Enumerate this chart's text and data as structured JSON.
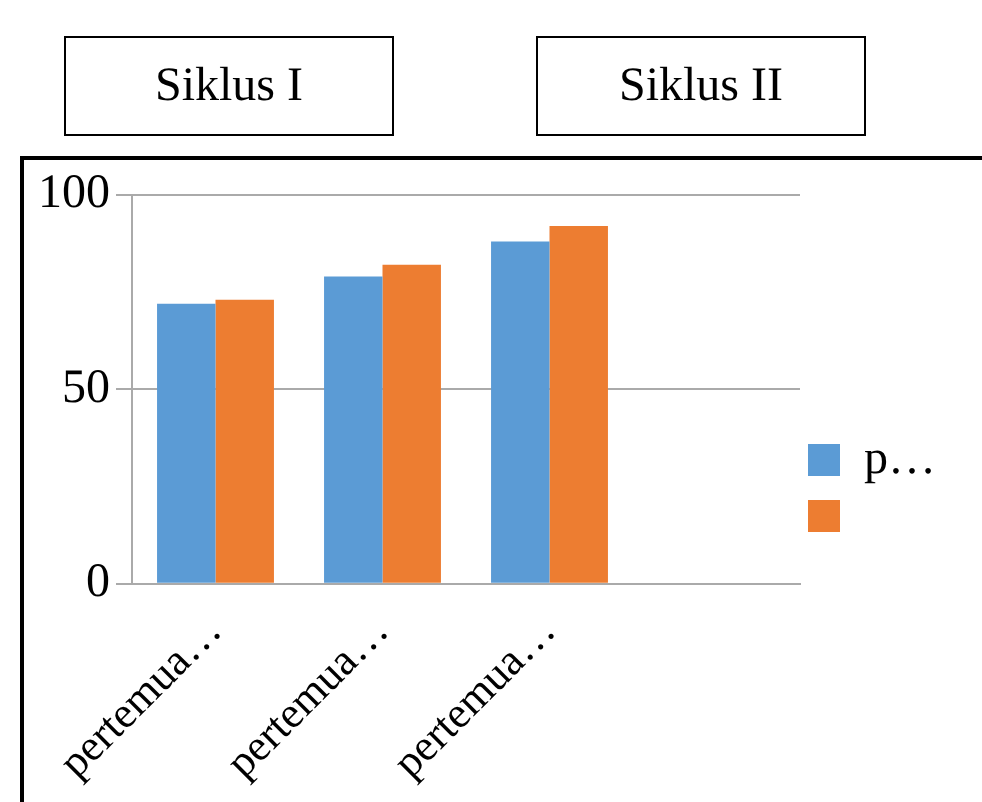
{
  "chart_data": {
    "type": "bar",
    "annotations": [
      "Siklus I",
      "Siklus II"
    ],
    "categories": [
      "pertemua…",
      "pertemua…",
      "pertemua…",
      null
    ],
    "series": [
      {
        "name": "p…",
        "color": "#5b9bd5",
        "values": [
          72,
          79,
          88,
          null
        ]
      },
      {
        "color": "#ed7d31",
        "values": [
          73,
          82,
          92,
          null
        ]
      }
    ],
    "ylim": [
      0,
      100
    ],
    "yticks": [
      0,
      50,
      100
    ],
    "grid": "y",
    "legend": "right"
  }
}
